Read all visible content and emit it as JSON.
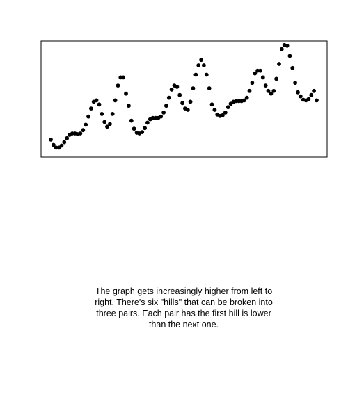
{
  "chart_data": {
    "type": "scatter",
    "title": "",
    "xlabel": "",
    "ylabel": "",
    "axes_visible": false,
    "ticks_visible": false,
    "grid": false,
    "legend": "none",
    "xlim": [
      0,
      100
    ],
    "ylim": [
      -0.3,
      8.3
    ],
    "marker_color": "#000000",
    "frame_color": "#000000",
    "x": [
      1,
      2,
      3,
      4,
      5,
      6,
      7,
      8,
      9,
      10,
      11,
      12,
      13,
      14,
      15,
      16,
      17,
      18,
      19,
      20,
      21,
      22,
      23,
      24,
      25,
      26,
      27,
      28,
      29,
      30,
      31,
      32,
      33,
      34,
      35,
      36,
      37,
      38,
      39,
      40,
      41,
      42,
      43,
      44,
      45,
      46,
      47,
      48,
      49,
      50,
      51,
      52,
      53,
      54,
      55,
      56,
      57,
      58,
      59,
      60,
      61,
      62,
      63,
      64,
      65,
      66,
      67,
      68,
      69,
      70,
      71,
      72,
      73,
      74,
      75,
      76,
      77,
      78,
      79,
      80,
      81,
      82,
      83,
      84,
      85,
      86,
      87,
      88,
      89,
      90,
      91,
      92,
      93,
      94,
      95,
      96,
      97,
      98,
      99,
      100
    ],
    "y": [
      1.0,
      0.6,
      0.4,
      0.4,
      0.55,
      0.8,
      1.1,
      1.35,
      1.45,
      1.45,
      1.4,
      1.45,
      1.7,
      2.1,
      2.7,
      3.3,
      3.8,
      3.9,
      3.6,
      2.9,
      2.3,
      1.95,
      2.15,
      2.9,
      3.9,
      5.0,
      5.6,
      5.6,
      4.4,
      3.5,
      2.4,
      1.8,
      1.5,
      1.45,
      1.55,
      1.85,
      2.25,
      2.5,
      2.6,
      2.6,
      2.6,
      2.7,
      3.0,
      3.5,
      4.1,
      4.7,
      5.0,
      4.9,
      4.3,
      3.7,
      3.3,
      3.2,
      3.8,
      4.8,
      5.8,
      6.5,
      6.9,
      6.5,
      5.8,
      4.8,
      3.6,
      3.2,
      2.85,
      2.75,
      2.8,
      3.0,
      3.4,
      3.65,
      3.8,
      3.85,
      3.85,
      3.85,
      3.9,
      4.1,
      4.6,
      5.2,
      5.9,
      6.1,
      6.1,
      5.6,
      5.0,
      4.6,
      4.4,
      4.6,
      5.5,
      6.6,
      7.7,
      8.0,
      7.95,
      7.2,
      6.3,
      5.2,
      4.5,
      4.2,
      3.95,
      3.9,
      4.0,
      4.3,
      4.6,
      3.9
    ]
  },
  "caption": "The graph gets increasingly higher from left to right. There's six \"hills\" that can be broken into three pairs. Each pair has the first hill is lower than the next one."
}
